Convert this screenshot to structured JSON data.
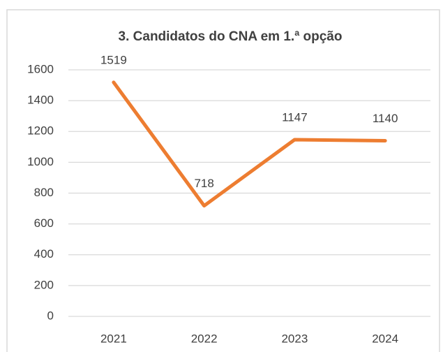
{
  "chart_data": {
    "type": "line",
    "title": "3. Candidatos do CNA em 1.ª opção",
    "categories": [
      "2021",
      "2022",
      "2023",
      "2024"
    ],
    "values": [
      1519,
      718,
      1147,
      1140
    ],
    "color": "#ed7d31",
    "ylim": [
      0,
      1600
    ],
    "yticks": [
      0,
      200,
      400,
      600,
      800,
      1000,
      1200,
      1400,
      1600
    ],
    "grid": true
  }
}
